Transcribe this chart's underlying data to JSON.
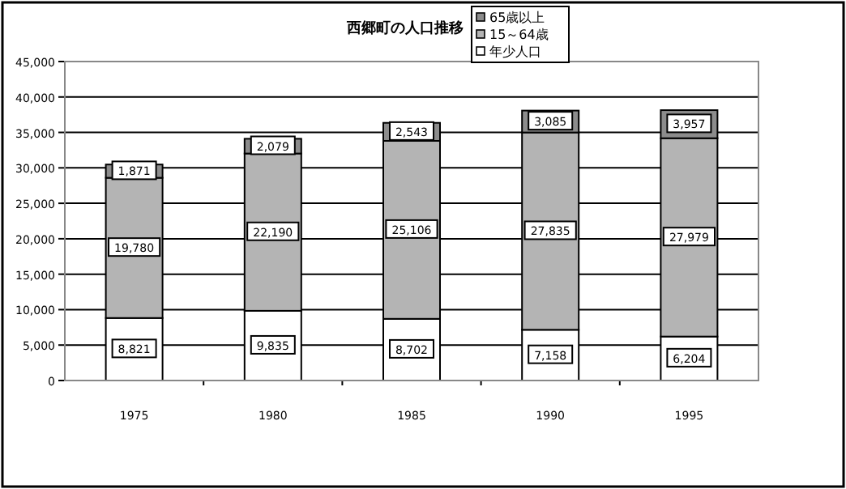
{
  "chart_data": {
    "type": "bar",
    "title": "西郷町の人口推移",
    "categories": [
      "1975",
      "1980",
      "1985",
      "1990",
      "1995"
    ],
    "series": [
      {
        "name": "年少人口",
        "color": "#ffffff",
        "values": [
          8821,
          9835,
          8702,
          7158,
          6204
        ],
        "value_labels": [
          "8,821",
          "9,835",
          "8,702",
          "7,158",
          "6,204"
        ]
      },
      {
        "name": "15～64歳",
        "color": "#b4b4b4",
        "values": [
          19780,
          22190,
          25106,
          27835,
          27979
        ],
        "value_labels": [
          "19,780",
          "22,190",
          "25,106",
          "27,835",
          "27,979"
        ]
      },
      {
        "name": "65歳以上",
        "color": "#8c8c8c",
        "values": [
          1871,
          2079,
          2543,
          3085,
          3957
        ],
        "value_labels": [
          "1,871",
          "2,079",
          "2,543",
          "3,085",
          "3,957"
        ]
      }
    ],
    "stacked": true,
    "legend": "top",
    "grid": "y",
    "ylim": [
      0,
      45000
    ],
    "yticks": [
      {
        "value": 0,
        "label": "0"
      },
      {
        "value": 5000,
        "label": "5,000"
      },
      {
        "value": 10000,
        "label": "10,000"
      },
      {
        "value": 15000,
        "label": "15,000"
      },
      {
        "value": 20000,
        "label": "20,000"
      },
      {
        "value": 25000,
        "label": "25,000"
      },
      {
        "value": 30000,
        "label": "30,000"
      },
      {
        "value": 35000,
        "label": "35,000"
      },
      {
        "value": 40000,
        "label": "40,000"
      },
      {
        "value": 45000,
        "label": "45,000"
      }
    ]
  }
}
